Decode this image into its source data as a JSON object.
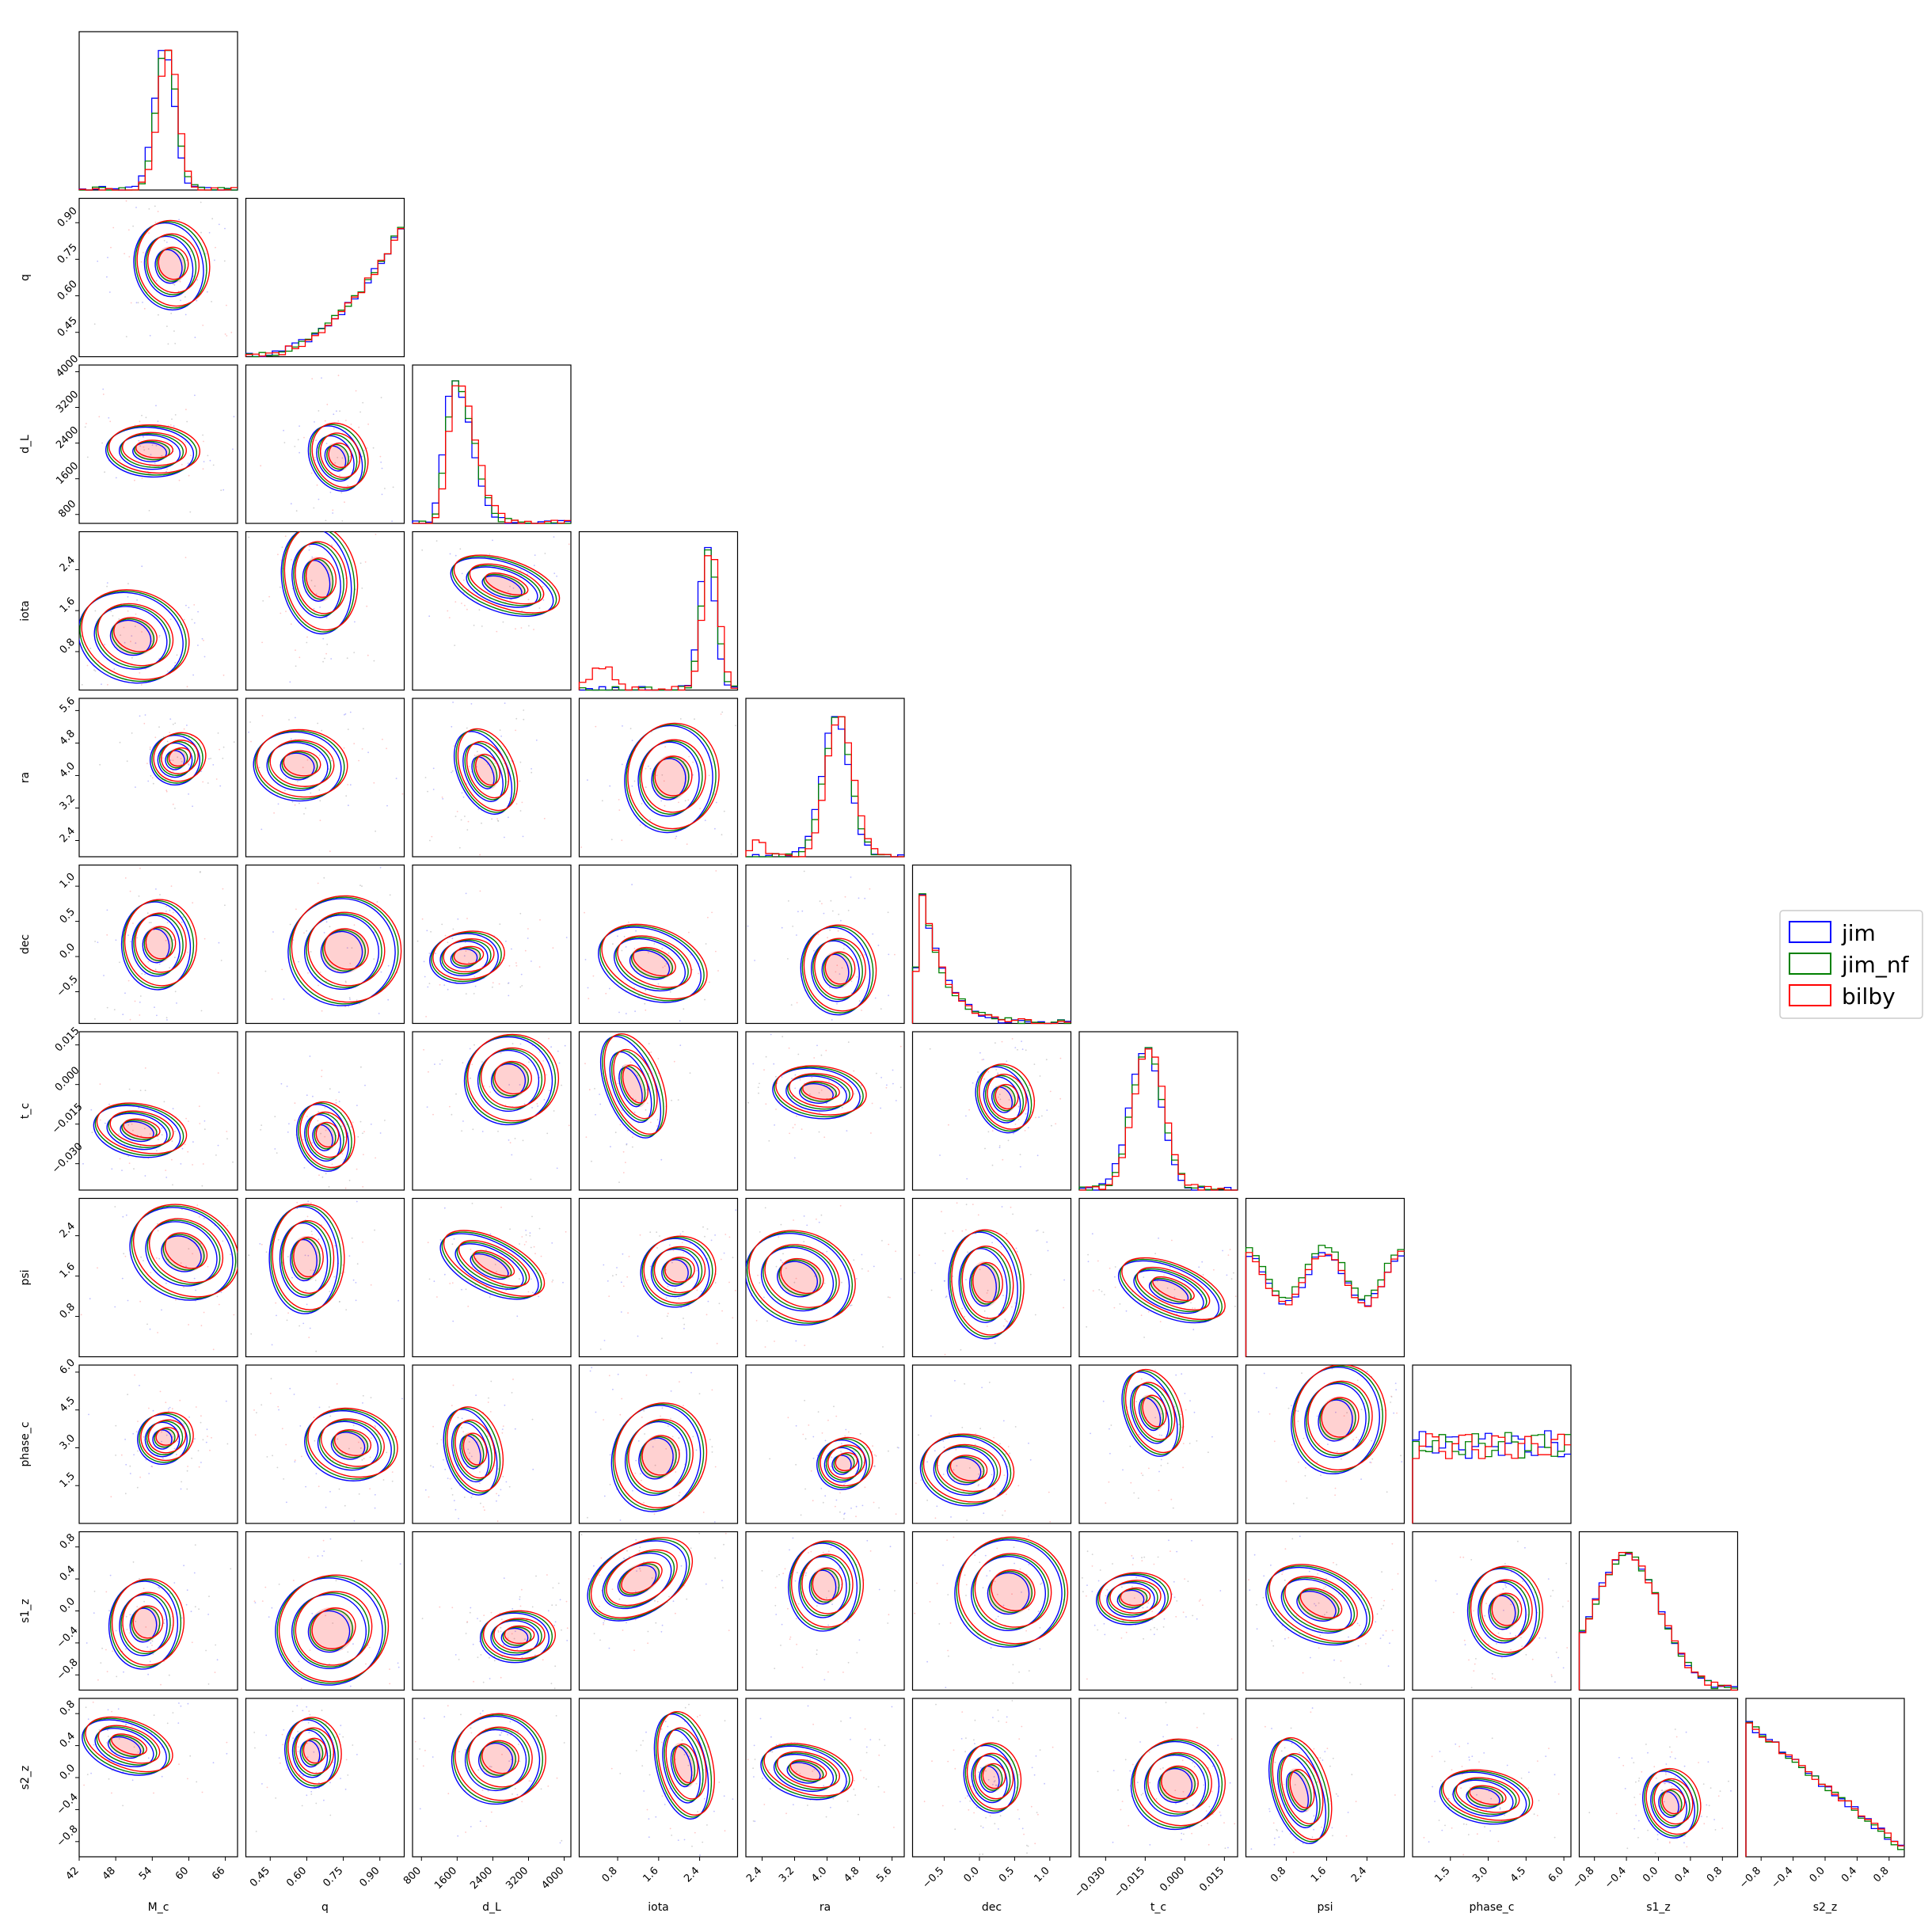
{
  "chart_data": {
    "type": "corner",
    "parameters": [
      {
        "name": "M_c",
        "range": [
          42,
          68
        ],
        "ticks": [
          "42",
          "48",
          "54",
          "60",
          "66"
        ],
        "tick_values": [
          42,
          48,
          54,
          60,
          66
        ]
      },
      {
        "name": "q",
        "range": [
          0.35,
          1.0
        ],
        "ticks": [
          "0.45",
          "0.60",
          "0.75",
          "0.90"
        ],
        "tick_values": [
          0.45,
          0.6,
          0.75,
          0.9
        ]
      },
      {
        "name": "d_L",
        "range": [
          600,
          4150
        ],
        "ticks": [
          "800",
          "1600",
          "2400",
          "3200",
          "4000"
        ],
        "tick_values": [
          800,
          1600,
          2400,
          3200,
          4000
        ]
      },
      {
        "name": "iota",
        "range": [
          0.05,
          3.14
        ],
        "ticks": [
          "0.8",
          "1.6",
          "2.4"
        ],
        "tick_values": [
          0.8,
          1.6,
          2.4
        ]
      },
      {
        "name": "ra",
        "range": [
          2.0,
          5.9
        ],
        "ticks": [
          "2.4",
          "3.2",
          "4.0",
          "4.8",
          "5.6"
        ],
        "tick_values": [
          2.4,
          3.2,
          4.0,
          4.8,
          5.6
        ]
      },
      {
        "name": "dec",
        "range": [
          -0.95,
          1.3
        ],
        "ticks": [
          "−0.5",
          "0.0",
          "0.5",
          "1.0"
        ],
        "tick_values": [
          -0.5,
          0.0,
          0.5,
          1.0
        ]
      },
      {
        "name": "t_c",
        "range": [
          -0.04,
          0.02
        ],
        "ticks": [
          "−0.030",
          "−0.015",
          "0.000",
          "0.015"
        ],
        "tick_values": [
          -0.03,
          -0.015,
          0.0,
          0.015
        ]
      },
      {
        "name": "psi",
        "range": [
          0.0,
          3.14
        ],
        "ticks": [
          "0.8",
          "1.6",
          "2.4"
        ],
        "tick_values": [
          0.8,
          1.6,
          2.4
        ]
      },
      {
        "name": "phase_c",
        "range": [
          0.0,
          6.28
        ],
        "ticks": [
          "1.5",
          "3.0",
          "4.5",
          "6.0"
        ],
        "tick_values": [
          1.5,
          3.0,
          4.5,
          6.0
        ]
      },
      {
        "name": "s1_z",
        "range": [
          -0.99,
          0.99
        ],
        "ticks": [
          "−0.8",
          "−0.4",
          "0.0",
          "0.4",
          "0.8"
        ],
        "tick_values": [
          -0.8,
          -0.4,
          0.0,
          0.4,
          0.8
        ]
      },
      {
        "name": "s2_z",
        "range": [
          -0.99,
          0.99
        ],
        "ticks": [
          "−0.8",
          "−0.4",
          "0.0",
          "0.4",
          "0.8"
        ],
        "tick_values": [
          -0.8,
          -0.4,
          0.0,
          0.4,
          0.8
        ]
      }
    ],
    "series": [
      {
        "name": "jim",
        "color": "#0000ff"
      },
      {
        "name": "jim_nf",
        "color": "#008000"
      },
      {
        "name": "bilby",
        "color": "#ff0000"
      }
    ],
    "legend_position": "right"
  }
}
